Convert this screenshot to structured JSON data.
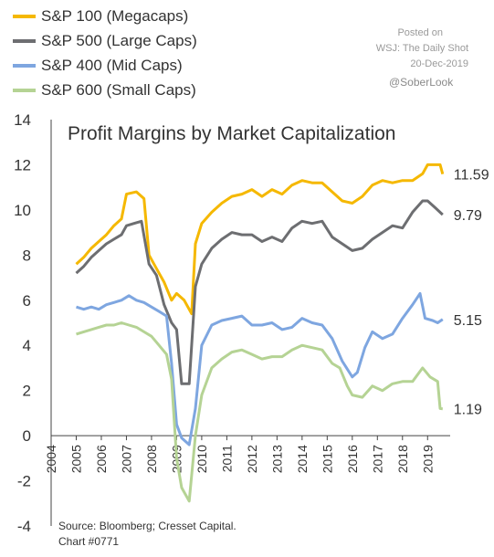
{
  "posted": {
    "line1": "Posted on",
    "line2": "WSJ: The Daily Shot",
    "line3": "20-Dec-2019",
    "handle": "@SoberLook"
  },
  "source": {
    "line1": "Source: Bloomberg; Cresset Capital.",
    "line2": "Chart #0771"
  },
  "chart_data": {
    "type": "line",
    "title": "Profit Margins by Market Capitalization",
    "xlabel": "",
    "ylabel": "",
    "xlim": [
      2004,
      2019.9
    ],
    "ylim": [
      -4,
      14
    ],
    "xticks": [
      "2004",
      "2005",
      "2006",
      "2007",
      "2008",
      "2009",
      "2010",
      "2011",
      "2012",
      "2013",
      "2014",
      "2015",
      "2016",
      "2017",
      "2018",
      "2019"
    ],
    "yticks": [
      -4,
      -2,
      0,
      2,
      4,
      6,
      8,
      10,
      12,
      14
    ],
    "legend_position": "top-left",
    "grid": false,
    "series": [
      {
        "name": "S&P 100 (Megacaps)",
        "color": "#f5b800",
        "end_label": "11.59",
        "points": [
          [
            2005.0,
            7.6
          ],
          [
            2005.3,
            7.9
          ],
          [
            2005.6,
            8.3
          ],
          [
            2005.9,
            8.6
          ],
          [
            2006.2,
            8.9
          ],
          [
            2006.5,
            9.3
          ],
          [
            2006.8,
            9.6
          ],
          [
            2007.0,
            10.7
          ],
          [
            2007.4,
            10.8
          ],
          [
            2007.7,
            10.5
          ],
          [
            2007.9,
            8.0
          ],
          [
            2008.2,
            7.4
          ],
          [
            2008.5,
            6.8
          ],
          [
            2008.8,
            6.0
          ],
          [
            2009.0,
            6.3
          ],
          [
            2009.3,
            6.0
          ],
          [
            2009.6,
            5.4
          ],
          [
            2009.75,
            8.5
          ],
          [
            2010.0,
            9.4
          ],
          [
            2010.4,
            9.9
          ],
          [
            2010.8,
            10.3
          ],
          [
            2011.2,
            10.6
          ],
          [
            2011.6,
            10.7
          ],
          [
            2012.0,
            10.9
          ],
          [
            2012.4,
            10.6
          ],
          [
            2012.8,
            10.9
          ],
          [
            2013.2,
            10.7
          ],
          [
            2013.6,
            11.1
          ],
          [
            2014.0,
            11.3
          ],
          [
            2014.4,
            11.2
          ],
          [
            2014.8,
            11.2
          ],
          [
            2015.2,
            10.8
          ],
          [
            2015.6,
            10.4
          ],
          [
            2016.0,
            10.3
          ],
          [
            2016.4,
            10.6
          ],
          [
            2016.8,
            11.1
          ],
          [
            2017.2,
            11.3
          ],
          [
            2017.6,
            11.2
          ],
          [
            2018.0,
            11.3
          ],
          [
            2018.4,
            11.3
          ],
          [
            2018.8,
            11.6
          ],
          [
            2019.0,
            12.0
          ],
          [
            2019.3,
            12.0
          ],
          [
            2019.5,
            12.0
          ],
          [
            2019.6,
            11.59
          ]
        ]
      },
      {
        "name": "S&P 500 (Large Caps)",
        "color": "#6d6e71",
        "end_label": "9.79",
        "points": [
          [
            2005.0,
            7.2
          ],
          [
            2005.3,
            7.5
          ],
          [
            2005.6,
            7.9
          ],
          [
            2005.9,
            8.2
          ],
          [
            2006.2,
            8.5
          ],
          [
            2006.5,
            8.7
          ],
          [
            2006.8,
            8.9
          ],
          [
            2007.0,
            9.3
          ],
          [
            2007.3,
            9.4
          ],
          [
            2007.6,
            9.5
          ],
          [
            2007.9,
            7.6
          ],
          [
            2008.2,
            7.1
          ],
          [
            2008.5,
            5.8
          ],
          [
            2008.8,
            5.0
          ],
          [
            2009.0,
            4.7
          ],
          [
            2009.2,
            2.3
          ],
          [
            2009.5,
            2.3
          ],
          [
            2009.75,
            6.6
          ],
          [
            2010.0,
            7.6
          ],
          [
            2010.4,
            8.3
          ],
          [
            2010.8,
            8.7
          ],
          [
            2011.2,
            9.0
          ],
          [
            2011.6,
            8.9
          ],
          [
            2012.0,
            8.9
          ],
          [
            2012.4,
            8.6
          ],
          [
            2012.8,
            8.8
          ],
          [
            2013.2,
            8.6
          ],
          [
            2013.6,
            9.2
          ],
          [
            2014.0,
            9.5
          ],
          [
            2014.4,
            9.4
          ],
          [
            2014.8,
            9.5
          ],
          [
            2015.2,
            8.8
          ],
          [
            2015.6,
            8.5
          ],
          [
            2016.0,
            8.2
          ],
          [
            2016.4,
            8.3
          ],
          [
            2016.8,
            8.7
          ],
          [
            2017.2,
            9.0
          ],
          [
            2017.6,
            9.3
          ],
          [
            2018.0,
            9.2
          ],
          [
            2018.4,
            9.9
          ],
          [
            2018.8,
            10.4
          ],
          [
            2019.0,
            10.4
          ],
          [
            2019.3,
            10.1
          ],
          [
            2019.6,
            9.79
          ]
        ]
      },
      {
        "name": "S&P 400 (Mid Caps)",
        "color": "#7ea6e0",
        "end_label": "5.15",
        "points": [
          [
            2005.0,
            5.7
          ],
          [
            2005.3,
            5.6
          ],
          [
            2005.6,
            5.7
          ],
          [
            2005.9,
            5.6
          ],
          [
            2006.2,
            5.8
          ],
          [
            2006.5,
            5.9
          ],
          [
            2006.8,
            6.0
          ],
          [
            2007.1,
            6.2
          ],
          [
            2007.4,
            6.0
          ],
          [
            2007.7,
            5.9
          ],
          [
            2008.0,
            5.7
          ],
          [
            2008.3,
            5.5
          ],
          [
            2008.6,
            5.3
          ],
          [
            2008.8,
            3.2
          ],
          [
            2009.0,
            0.5
          ],
          [
            2009.2,
            -0.1
          ],
          [
            2009.5,
            -0.4
          ],
          [
            2009.75,
            1.2
          ],
          [
            2010.0,
            4.0
          ],
          [
            2010.4,
            4.9
          ],
          [
            2010.8,
            5.1
          ],
          [
            2011.2,
            5.2
          ],
          [
            2011.6,
            5.3
          ],
          [
            2012.0,
            4.9
          ],
          [
            2012.4,
            4.9
          ],
          [
            2012.8,
            5.0
          ],
          [
            2013.2,
            4.7
          ],
          [
            2013.6,
            4.8
          ],
          [
            2014.0,
            5.2
          ],
          [
            2014.4,
            5.0
          ],
          [
            2014.8,
            4.9
          ],
          [
            2015.2,
            4.3
          ],
          [
            2015.6,
            3.3
          ],
          [
            2016.0,
            2.6
          ],
          [
            2016.2,
            2.8
          ],
          [
            2016.5,
            3.9
          ],
          [
            2016.8,
            4.6
          ],
          [
            2017.2,
            4.3
          ],
          [
            2017.6,
            4.5
          ],
          [
            2018.0,
            5.2
          ],
          [
            2018.4,
            5.8
          ],
          [
            2018.7,
            6.3
          ],
          [
            2018.9,
            5.2
          ],
          [
            2019.2,
            5.1
          ],
          [
            2019.4,
            5.0
          ],
          [
            2019.6,
            5.15
          ]
        ]
      },
      {
        "name": "S&P 600 (Small Caps)",
        "color": "#b5d394",
        "end_label": "1.19",
        "points": [
          [
            2005.0,
            4.5
          ],
          [
            2005.3,
            4.6
          ],
          [
            2005.6,
            4.7
          ],
          [
            2005.9,
            4.8
          ],
          [
            2006.2,
            4.9
          ],
          [
            2006.5,
            4.9
          ],
          [
            2006.8,
            5.0
          ],
          [
            2007.1,
            4.9
          ],
          [
            2007.4,
            4.8
          ],
          [
            2007.7,
            4.6
          ],
          [
            2008.0,
            4.4
          ],
          [
            2008.3,
            4.0
          ],
          [
            2008.6,
            3.6
          ],
          [
            2008.8,
            2.5
          ],
          [
            2009.0,
            -1.0
          ],
          [
            2009.2,
            -2.3
          ],
          [
            2009.5,
            -2.9
          ],
          [
            2009.75,
            0.0
          ],
          [
            2010.0,
            1.8
          ],
          [
            2010.4,
            3.0
          ],
          [
            2010.8,
            3.4
          ],
          [
            2011.2,
            3.7
          ],
          [
            2011.6,
            3.8
          ],
          [
            2012.0,
            3.6
          ],
          [
            2012.4,
            3.4
          ],
          [
            2012.8,
            3.5
          ],
          [
            2013.2,
            3.5
          ],
          [
            2013.6,
            3.8
          ],
          [
            2014.0,
            4.0
          ],
          [
            2014.4,
            3.9
          ],
          [
            2014.8,
            3.8
          ],
          [
            2015.2,
            3.2
          ],
          [
            2015.5,
            3.0
          ],
          [
            2015.8,
            2.2
          ],
          [
            2016.0,
            1.8
          ],
          [
            2016.4,
            1.7
          ],
          [
            2016.8,
            2.2
          ],
          [
            2017.2,
            2.0
          ],
          [
            2017.6,
            2.3
          ],
          [
            2018.0,
            2.4
          ],
          [
            2018.4,
            2.4
          ],
          [
            2018.8,
            3.0
          ],
          [
            2019.1,
            2.6
          ],
          [
            2019.4,
            2.4
          ],
          [
            2019.5,
            1.2
          ],
          [
            2019.6,
            1.19
          ]
        ]
      }
    ]
  }
}
